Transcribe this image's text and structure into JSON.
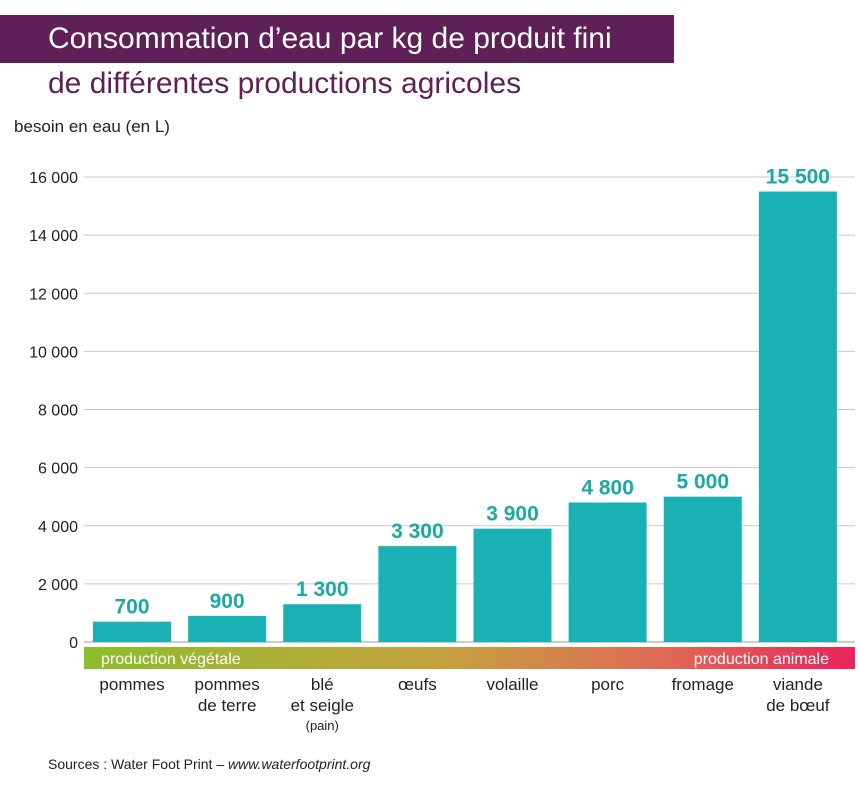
{
  "title_line1": "Consommation d’eau par kg de produit fini",
  "title_line2": "de différentes productions agricoles",
  "source_prefix": "Sources : Water Foot Print – ",
  "source_url": "www.waterfootprint.org",
  "colors": {
    "bar": "#1ab1b5",
    "value_label": "#1aa9a3",
    "title_bg": "#5f1f57",
    "band_start": "#8bbd2c",
    "band_end": "#e8245c"
  },
  "chart_data": {
    "type": "bar",
    "ylabel": "besoin en eau (en L)",
    "ylim": [
      0,
      16000
    ],
    "yticks": [
      {
        "value": 0,
        "label": "0"
      },
      {
        "value": 2000,
        "label": "2 000"
      },
      {
        "value": 4000,
        "label": "4 000"
      },
      {
        "value": 6000,
        "label": "6 000"
      },
      {
        "value": 8000,
        "label": "8 000"
      },
      {
        "value": 10000,
        "label": "10 000"
      },
      {
        "value": 12000,
        "label": "12 000"
      },
      {
        "value": 14000,
        "label": "14 000"
      },
      {
        "value": 16000,
        "label": "16 000"
      }
    ],
    "grid": true,
    "categories": [
      {
        "lines": [
          "pommes"
        ],
        "note": ""
      },
      {
        "lines": [
          "pommes",
          "de terre"
        ],
        "note": ""
      },
      {
        "lines": [
          "blé",
          "et seigle"
        ],
        "note": "(pain)"
      },
      {
        "lines": [
          "œufs"
        ],
        "note": ""
      },
      {
        "lines": [
          "volaille"
        ],
        "note": ""
      },
      {
        "lines": [
          "porc"
        ],
        "note": ""
      },
      {
        "lines": [
          "fromage"
        ],
        "note": ""
      },
      {
        "lines": [
          "viande",
          "de bœuf"
        ],
        "note": ""
      }
    ],
    "values": [
      700,
      900,
      1300,
      3300,
      3900,
      4800,
      5000,
      15500
    ],
    "value_labels": [
      "700",
      "900",
      "1 300",
      "3 300",
      "3 900",
      "4 800",
      "5 000",
      "15 500"
    ],
    "groups": {
      "left": "production végétale",
      "right": "production animale"
    }
  }
}
